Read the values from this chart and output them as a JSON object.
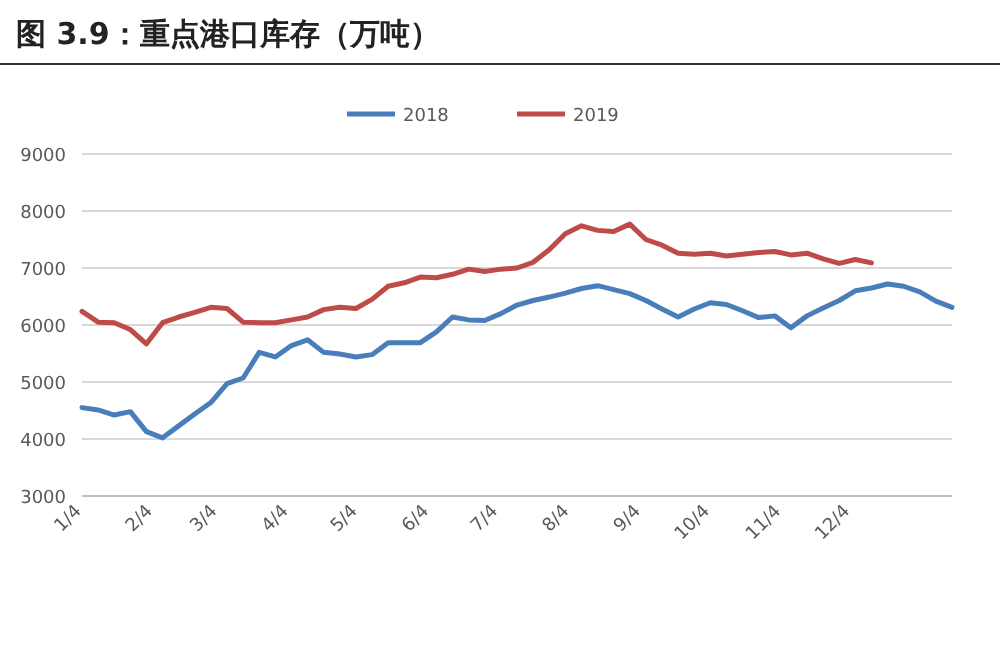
{
  "chart_data": {
    "type": "line",
    "title": "图 3.9：重点港口库存（万吨）",
    "xlim": [
      "2018-01-04",
      "2019-01-17"
    ],
    "xticks": [
      {
        "value": "2018-01-04",
        "label": "1/4"
      },
      {
        "value": "2018-02-04",
        "label": "2/4"
      },
      {
        "value": "2018-03-04",
        "label": "3/4"
      },
      {
        "value": "2018-04-04",
        "label": "4/4"
      },
      {
        "value": "2018-05-04",
        "label": "5/4"
      },
      {
        "value": "2018-06-04",
        "label": "6/4"
      },
      {
        "value": "2018-07-04",
        "label": "7/4"
      },
      {
        "value": "2018-08-04",
        "label": "8/4"
      },
      {
        "value": "2018-09-04",
        "label": "9/4"
      },
      {
        "value": "2018-10-04",
        "label": "10/4"
      },
      {
        "value": "2018-11-04",
        "label": "11/4"
      },
      {
        "value": "2018-12-04",
        "label": "12/4"
      }
    ],
    "ylim": [
      3000,
      9000
    ],
    "yticks": [
      3000,
      4000,
      5000,
      6000,
      7000,
      8000,
      9000
    ],
    "grid": "y",
    "legend": "top",
    "line_style": "solid",
    "series": [
      {
        "name": "2018",
        "color": "#4a7ebb",
        "x": [
          "2018-01-04",
          "2018-01-11",
          "2018-01-18",
          "2018-01-25",
          "2018-02-01",
          "2018-02-08",
          "2018-02-15",
          "2018-02-22",
          "2018-03-01",
          "2018-03-08",
          "2018-03-15",
          "2018-03-22",
          "2018-03-29",
          "2018-04-05",
          "2018-04-12",
          "2018-04-19",
          "2018-04-26",
          "2018-05-03",
          "2018-05-10",
          "2018-05-17",
          "2018-05-24",
          "2018-05-31",
          "2018-06-07",
          "2018-06-14",
          "2018-06-21",
          "2018-06-28",
          "2018-07-05",
          "2018-07-12",
          "2018-07-19",
          "2018-07-26",
          "2018-08-02",
          "2018-08-09",
          "2018-08-16",
          "2018-08-23",
          "2018-08-30",
          "2018-09-06",
          "2018-09-13",
          "2018-09-20",
          "2018-09-27",
          "2018-10-04",
          "2018-10-11",
          "2018-10-18",
          "2018-10-25",
          "2018-11-01",
          "2018-11-08",
          "2018-11-15",
          "2018-11-22",
          "2018-11-29",
          "2018-12-06",
          "2018-12-13",
          "2018-12-20",
          "2018-12-27",
          "2019-01-03",
          "2019-01-10",
          "2019-01-17"
        ],
        "values": [
          4550,
          4510,
          4420,
          4480,
          4130,
          4020,
          4230,
          4440,
          4640,
          4970,
          5070,
          5520,
          5440,
          5640,
          5740,
          5520,
          5490,
          5440,
          5480,
          5690,
          5690,
          5690,
          5880,
          6140,
          6090,
          6080,
          6200,
          6350,
          6430,
          6490,
          6560,
          6640,
          6690,
          6620,
          6550,
          6430,
          6280,
          6140,
          6280,
          6390,
          6360,
          6250,
          6130,
          6160,
          5950,
          6160,
          6300,
          6430,
          6600,
          6650,
          6720,
          6680,
          6580,
          6420,
          6310
        ]
      },
      {
        "name": "2019",
        "color": "#be4b48",
        "x": [
          "2018-01-04",
          "2018-01-11",
          "2018-01-18",
          "2018-01-25",
          "2018-02-01",
          "2018-02-08",
          "2018-02-15",
          "2018-02-22",
          "2018-03-01",
          "2018-03-08",
          "2018-03-15",
          "2018-03-22",
          "2018-03-29",
          "2018-04-05",
          "2018-04-12",
          "2018-04-19",
          "2018-04-26",
          "2018-05-03",
          "2018-05-10",
          "2018-05-17",
          "2018-05-24",
          "2018-05-31",
          "2018-06-07",
          "2018-06-14",
          "2018-06-21",
          "2018-06-28",
          "2018-07-05",
          "2018-07-12",
          "2018-07-19",
          "2018-07-26",
          "2018-08-02",
          "2018-08-09",
          "2018-08-16",
          "2018-08-23",
          "2018-08-30",
          "2018-09-06",
          "2018-09-13",
          "2018-09-20",
          "2018-09-27",
          "2018-10-04",
          "2018-10-11",
          "2018-10-18",
          "2018-10-25",
          "2018-11-01",
          "2018-11-08",
          "2018-11-15",
          "2018-11-22",
          "2018-11-29",
          "2018-12-06",
          "2018-12-13"
        ],
        "values": [
          6240,
          6050,
          6040,
          5920,
          5670,
          6040,
          6140,
          6220,
          6310,
          6290,
          6050,
          6040,
          6040,
          6090,
          6140,
          6270,
          6310,
          6290,
          6450,
          6680,
          6740,
          6840,
          6830,
          6890,
          6980,
          6940,
          6980,
          7000,
          7100,
          7320,
          7600,
          7740,
          7660,
          7640,
          7770,
          7500,
          7400,
          7260,
          7240,
          7260,
          7210,
          7240,
          7270,
          7290,
          7230,
          7260,
          7160,
          7080,
          7150,
          7090
        ]
      }
    ]
  }
}
